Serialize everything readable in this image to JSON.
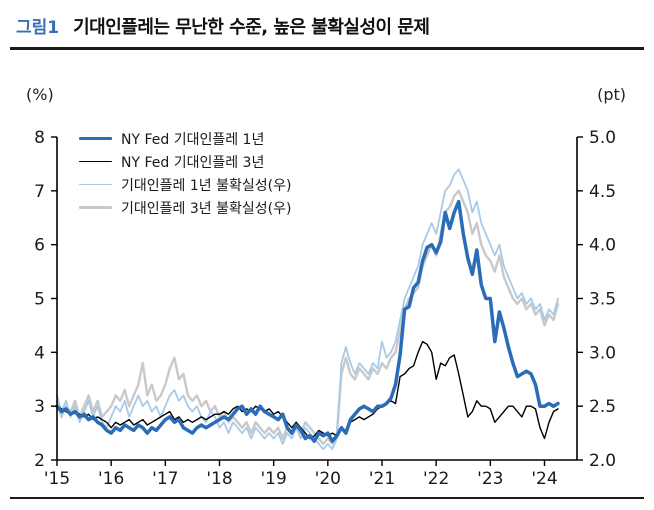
{
  "header": {
    "figure_label": "그림1",
    "title": "기대인플레는 무난한 수준, 높은 불확실성이 문제"
  },
  "colors": {
    "accent": "#3a6eb5",
    "series_expect_1yr": "#2b6cb8",
    "series_expect_3yr": "#000000",
    "series_uncert_1yr": "#a9c9e9",
    "series_uncert_3yr": "#c9c9c9",
    "axis": "#000000"
  },
  "chart_data": {
    "type": "line",
    "title": "기대인플레는 무난한 수준, 높은 불확실성이 문제",
    "x_start": 2015.0,
    "x_max": 2024.6,
    "points_per_year": 12,
    "grid": false,
    "legend_position": "top-left-inside",
    "x_ticks": [
      {
        "label": "'15",
        "x": 2015
      },
      {
        "label": "'16",
        "x": 2016
      },
      {
        "label": "'17",
        "x": 2017
      },
      {
        "label": "'18",
        "x": 2018
      },
      {
        "label": "'19",
        "x": 2019
      },
      {
        "label": "'20",
        "x": 2020
      },
      {
        "label": "'21",
        "x": 2021
      },
      {
        "label": "'22",
        "x": 2022
      },
      {
        "label": "'23",
        "x": 2023
      },
      {
        "label": "'24",
        "x": 2024
      }
    ],
    "left_axis": {
      "label": "(%)",
      "min": 2,
      "max": 8,
      "ticks": [
        {
          "label": "8",
          "value": 8
        },
        {
          "label": "7",
          "value": 7
        },
        {
          "label": "6",
          "value": 6
        },
        {
          "label": "5",
          "value": 5
        },
        {
          "label": "4",
          "value": 4
        },
        {
          "label": "3",
          "value": 3
        },
        {
          "label": "2",
          "value": 2
        }
      ]
    },
    "right_axis": {
      "label": "(pt)",
      "min": 2.0,
      "max": 5.0,
      "ticks": [
        {
          "label": "5.0",
          "value": 5.0
        },
        {
          "label": "4.5",
          "value": 4.5
        },
        {
          "label": "4.0",
          "value": 4.0
        },
        {
          "label": "3.5",
          "value": 3.5
        },
        {
          "label": "3.0",
          "value": 3.0
        },
        {
          "label": "2.5",
          "value": 2.5
        },
        {
          "label": "2.0",
          "value": 2.0
        }
      ]
    },
    "series": [
      {
        "name": "NY Fed 기대인플레 1년",
        "axis": "left",
        "color": "#2b6cb8",
        "width": 3.5,
        "values": [
          3.0,
          2.9,
          2.95,
          2.85,
          2.9,
          2.8,
          2.85,
          2.75,
          2.8,
          2.7,
          2.65,
          2.55,
          2.5,
          2.6,
          2.55,
          2.65,
          2.6,
          2.55,
          2.65,
          2.6,
          2.5,
          2.6,
          2.55,
          2.65,
          2.75,
          2.8,
          2.7,
          2.75,
          2.6,
          2.55,
          2.5,
          2.6,
          2.65,
          2.6,
          2.65,
          2.7,
          2.75,
          2.8,
          2.75,
          2.85,
          2.95,
          3.0,
          2.85,
          2.95,
          2.85,
          3.0,
          2.9,
          2.85,
          2.8,
          2.75,
          2.85,
          2.6,
          2.5,
          2.65,
          2.55,
          2.4,
          2.45,
          2.35,
          2.5,
          2.45,
          2.5,
          2.35,
          2.45,
          2.6,
          2.5,
          2.75,
          2.85,
          2.95,
          3.0,
          2.95,
          2.9,
          3.0,
          3.0,
          3.05,
          3.15,
          3.4,
          3.95,
          4.8,
          4.85,
          5.2,
          5.3,
          5.7,
          5.95,
          6.0,
          5.85,
          6.05,
          6.6,
          6.3,
          6.6,
          6.8,
          6.2,
          5.75,
          5.45,
          5.9,
          5.25,
          5.0,
          5.0,
          4.2,
          4.75,
          4.45,
          4.1,
          3.8,
          3.55,
          3.6,
          3.65,
          3.6,
          3.4,
          3.0,
          3.0,
          3.05,
          3.0,
          3.05
        ]
      },
      {
        "name": "NY Fed 기대인플레 3년",
        "axis": "left",
        "color": "#000000",
        "width": 1.4,
        "values": [
          3.0,
          2.95,
          2.9,
          2.85,
          2.9,
          2.85,
          2.8,
          2.85,
          2.75,
          2.8,
          2.75,
          2.7,
          2.6,
          2.7,
          2.65,
          2.7,
          2.75,
          2.65,
          2.7,
          2.75,
          2.65,
          2.7,
          2.75,
          2.8,
          2.85,
          2.9,
          2.75,
          2.8,
          2.7,
          2.75,
          2.7,
          2.75,
          2.8,
          2.75,
          2.8,
          2.85,
          2.85,
          2.9,
          2.85,
          2.95,
          3.0,
          2.9,
          2.95,
          2.9,
          3.0,
          2.95,
          2.9,
          2.95,
          2.85,
          2.9,
          2.8,
          2.7,
          2.6,
          2.7,
          2.6,
          2.5,
          2.4,
          2.45,
          2.55,
          2.5,
          2.45,
          2.5,
          2.45,
          2.6,
          2.55,
          2.7,
          2.75,
          2.8,
          2.75,
          2.8,
          2.85,
          2.95,
          3.0,
          3.05,
          3.1,
          3.05,
          3.55,
          3.6,
          3.7,
          3.75,
          4.0,
          4.2,
          4.15,
          4.0,
          3.5,
          3.8,
          3.75,
          3.9,
          3.95,
          3.6,
          3.2,
          2.8,
          2.9,
          3.1,
          3.0,
          3.0,
          2.95,
          2.7,
          2.8,
          2.9,
          3.0,
          3.0,
          2.9,
          2.8,
          3.0,
          3.0,
          2.95,
          2.6,
          2.4,
          2.7,
          2.9,
          2.95
        ]
      },
      {
        "name": "기대인플레  1년 불확실성(우)",
        "axis": "right",
        "color": "#a9c9e9",
        "width": 1.8,
        "values": [
          2.6,
          2.45,
          2.55,
          2.4,
          2.5,
          2.35,
          2.45,
          2.55,
          2.4,
          2.5,
          2.35,
          2.3,
          2.4,
          2.5,
          2.45,
          2.55,
          2.4,
          2.5,
          2.6,
          2.5,
          2.55,
          2.45,
          2.5,
          2.4,
          2.5,
          2.6,
          2.65,
          2.55,
          2.6,
          2.5,
          2.45,
          2.5,
          2.4,
          2.35,
          2.45,
          2.4,
          2.3,
          2.35,
          2.25,
          2.35,
          2.3,
          2.25,
          2.3,
          2.2,
          2.3,
          2.25,
          2.2,
          2.25,
          2.2,
          2.25,
          2.15,
          2.25,
          2.2,
          2.3,
          2.2,
          2.3,
          2.25,
          2.2,
          2.15,
          2.1,
          2.15,
          2.1,
          2.2,
          2.9,
          3.05,
          2.9,
          2.8,
          2.9,
          2.85,
          2.8,
          2.9,
          2.85,
          3.1,
          2.95,
          3.0,
          3.1,
          3.3,
          3.5,
          3.6,
          3.7,
          3.8,
          4.0,
          4.1,
          4.2,
          4.1,
          4.3,
          4.5,
          4.55,
          4.65,
          4.7,
          4.6,
          4.5,
          4.3,
          4.4,
          4.2,
          4.1,
          4.0,
          3.9,
          4.0,
          3.8,
          3.7,
          3.6,
          3.5,
          3.55,
          3.45,
          3.5,
          3.4,
          3.45,
          3.3,
          3.4,
          3.35,
          3.5
        ]
      },
      {
        "name": "기대인플레  3년 불확실성(우)",
        "axis": "right",
        "color": "#c9c9c9",
        "width": 2.4,
        "values": [
          2.55,
          2.4,
          2.5,
          2.45,
          2.55,
          2.4,
          2.5,
          2.6,
          2.45,
          2.55,
          2.4,
          2.45,
          2.5,
          2.6,
          2.55,
          2.65,
          2.5,
          2.6,
          2.7,
          2.9,
          2.6,
          2.7,
          2.55,
          2.6,
          2.7,
          2.85,
          2.95,
          2.75,
          2.8,
          2.6,
          2.55,
          2.6,
          2.5,
          2.55,
          2.45,
          2.5,
          2.4,
          2.45,
          2.35,
          2.4,
          2.35,
          2.3,
          2.35,
          2.25,
          2.35,
          2.3,
          2.25,
          2.3,
          2.25,
          2.3,
          2.2,
          2.3,
          2.25,
          2.35,
          2.25,
          2.35,
          2.3,
          2.25,
          2.2,
          2.15,
          2.2,
          2.15,
          2.25,
          2.8,
          2.95,
          2.8,
          2.75,
          2.85,
          2.8,
          2.75,
          2.85,
          2.8,
          2.9,
          2.85,
          2.95,
          3.0,
          3.2,
          3.4,
          3.5,
          3.55,
          3.6,
          3.8,
          3.9,
          4.0,
          3.9,
          4.1,
          4.3,
          4.35,
          4.45,
          4.5,
          4.4,
          4.3,
          4.1,
          4.2,
          4.0,
          3.9,
          3.85,
          3.75,
          3.9,
          3.7,
          3.6,
          3.5,
          3.45,
          3.5,
          3.4,
          3.45,
          3.35,
          3.4,
          3.25,
          3.35,
          3.3,
          3.45
        ]
      }
    ]
  }
}
